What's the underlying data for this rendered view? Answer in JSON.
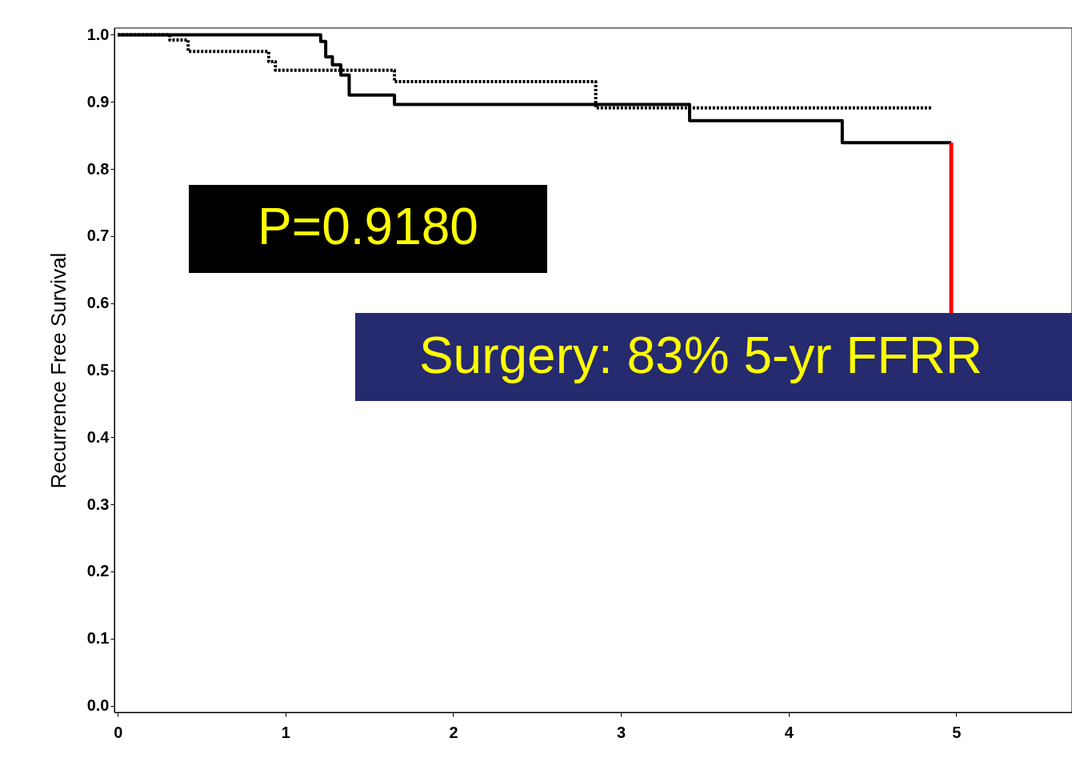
{
  "chart_data": {
    "type": "step",
    "ylabel": "Recurrence Free Survival",
    "xlim": [
      -0.02,
      5.69
    ],
    "ylim": [
      -0.01,
      1.01
    ],
    "xticks": [
      0,
      1,
      2,
      3,
      4,
      5
    ],
    "yticks": [
      {
        "value": 0.0,
        "label": "0.0"
      },
      {
        "value": 0.1,
        "label": "0.1"
      },
      {
        "value": 0.2,
        "label": "0.2"
      },
      {
        "value": 0.3,
        "label": "0.3"
      },
      {
        "value": 0.4,
        "label": "0.4"
      },
      {
        "value": 0.5,
        "label": "0.5"
      },
      {
        "value": 0.6,
        "label": "0.6"
      },
      {
        "value": 0.7,
        "label": "0.7"
      },
      {
        "value": 0.8,
        "label": "0.8"
      },
      {
        "value": 0.9,
        "label": "0.9"
      },
      {
        "value": 1.0,
        "label": "1.0"
      }
    ],
    "marker": "none",
    "series": [
      {
        "color": "#000000",
        "line_style": "solid",
        "x": [
          0,
          1.21,
          1.24,
          1.28,
          1.33,
          1.38,
          1.65,
          3.41,
          4.32,
          4.97
        ],
        "values": [
          1.0,
          0.99,
          0.967,
          0.955,
          0.94,
          0.91,
          0.896,
          0.872,
          0.839,
          0.839
        ]
      },
      {
        "color": "#000000",
        "line_style": "dotted",
        "x": [
          0,
          0.31,
          0.42,
          0.9,
          0.94,
          1.65,
          2.85,
          4.85
        ],
        "values": [
          1.0,
          0.992,
          0.975,
          0.96,
          0.947,
          0.93,
          0.891,
          0.891
        ]
      }
    ],
    "annotations": [
      "P=0.9180",
      {
        "text": "Surgery: 83% 5-yr FFRR",
        "x": 4.97,
        "y": 0.839
      }
    ]
  }
}
